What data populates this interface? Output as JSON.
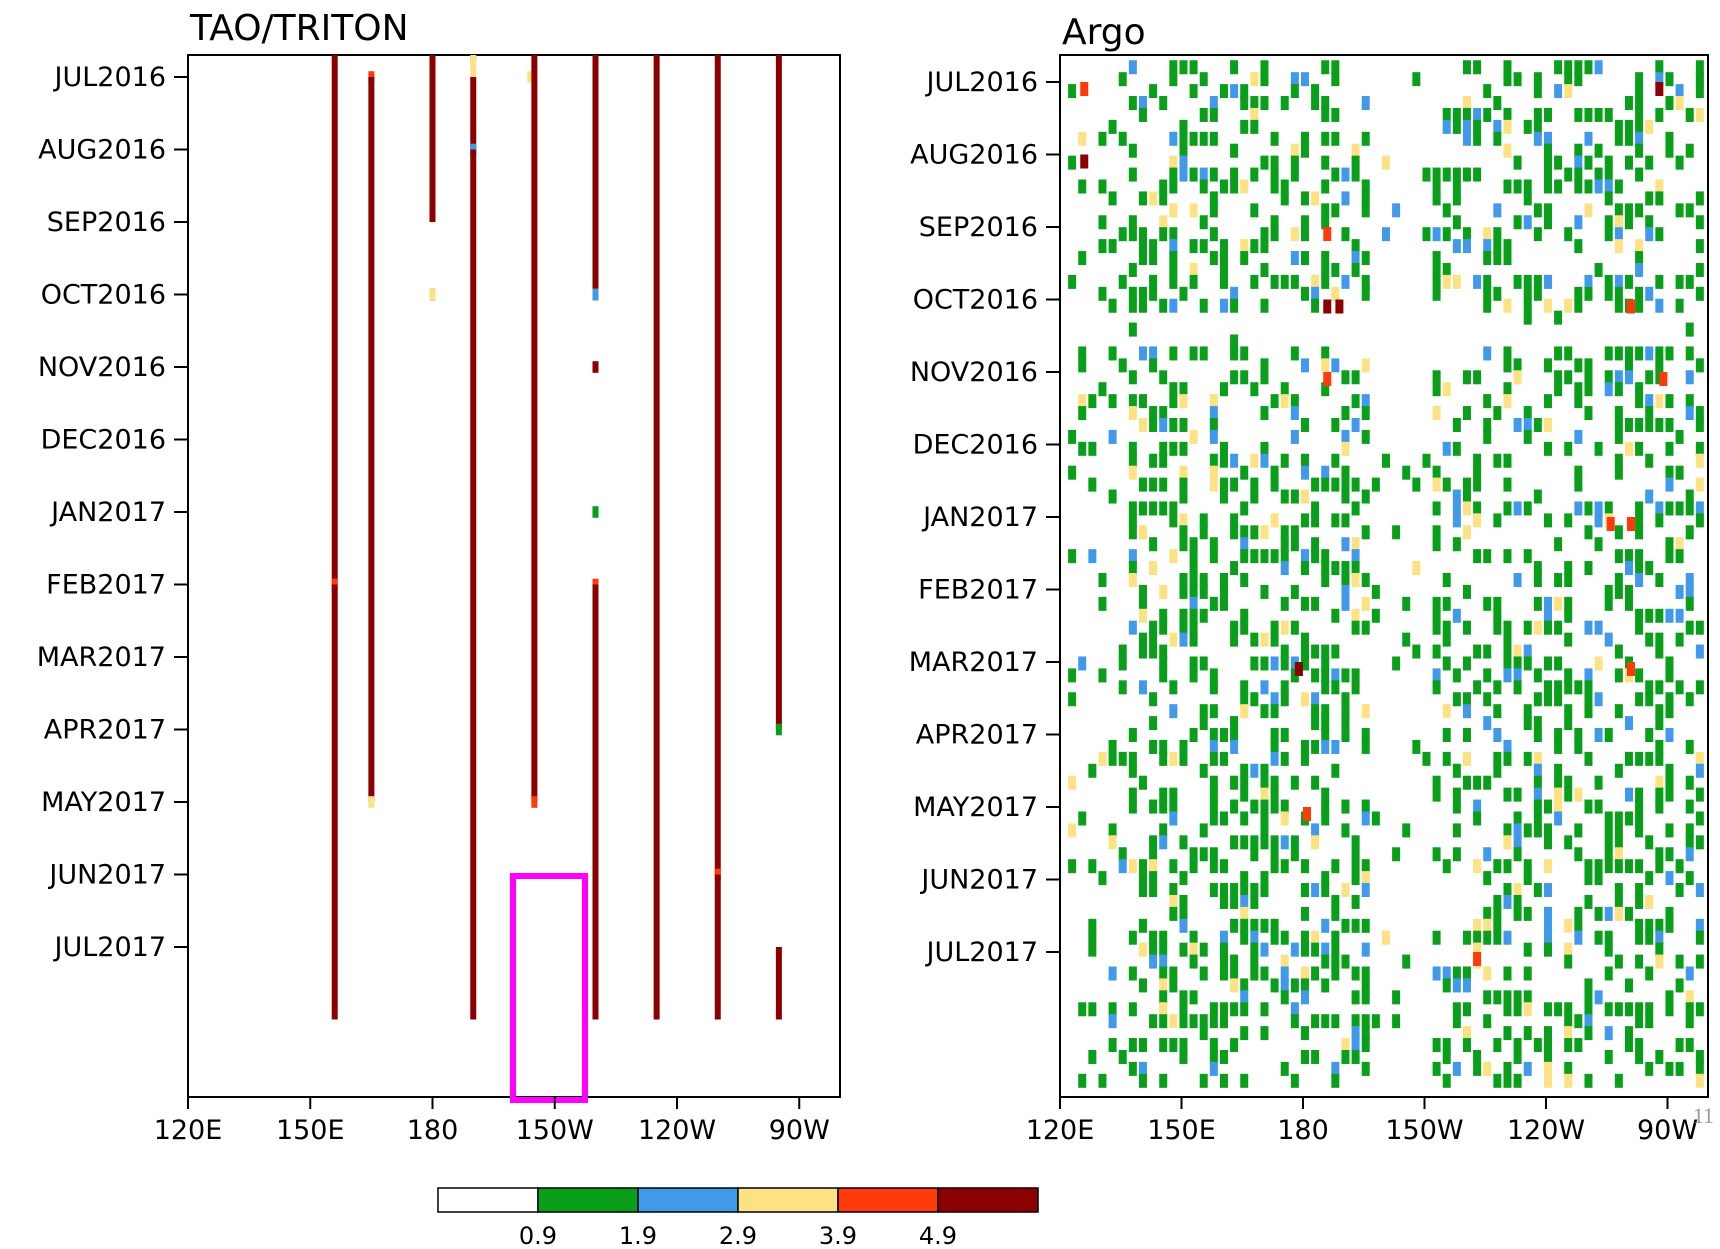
{
  "colorbar": {
    "colors": [
      "#ffffff",
      "#0a9f1a",
      "#4199ea",
      "#fde283",
      "#fe3a0b",
      "#8b0000"
    ],
    "labels": [
      "0.9",
      "1.9",
      "2.9",
      "3.9",
      "4.9"
    ]
  },
  "page_number": "11",
  "chart_data": [
    {
      "type": "heatmap",
      "title": "TAO/TRITON",
      "xlabel": "",
      "ylabel": "",
      "x_ticks": [
        "120E",
        "150E",
        "180",
        "150W",
        "120W",
        "90W"
      ],
      "y_ticks": [
        "JUL2016",
        "AUG2016",
        "SEP2016",
        "OCT2016",
        "NOV2016",
        "DEC2016",
        "JAN2017",
        "FEB2017",
        "MAR2017",
        "APR2017",
        "MAY2017",
        "JUN2017",
        "JUL2017"
      ],
      "xlim": [
        "120E",
        "80W"
      ],
      "ylim": [
        "JUN2016",
        "AUG2017"
      ],
      "highlight_box": {
        "lon_range": [
          "165W",
          "140W"
        ],
        "time_range": [
          "MAY2017",
          "AUG2017"
        ],
        "color": "#ff00ff"
      },
      "moorings": [
        {
          "lon": "156W",
          "segments": [
            {
              "from": "JUL2016",
              "to": "JUL2016",
              "class": 3
            }
          ]
        },
        {
          "lon": "156E",
          "segments": [
            {
              "from": "JUN2016",
              "to": "FEB2017",
              "class": 5
            },
            {
              "from": "FEB2017",
              "to": "FEB2017",
              "class": 4
            },
            {
              "from": "FEB2017",
              "to": "AUG2017",
              "class": 5
            }
          ]
        },
        {
          "lon": "165E",
          "segments": [
            {
              "from": "JUL2016",
              "to": "JUL2016",
              "class": 4
            },
            {
              "from": "JUL2016",
              "to": "MAY2017",
              "class": 5
            },
            {
              "from": "MAY2017",
              "to": "MAY2017",
              "class": 3
            }
          ]
        },
        {
          "lon": "180",
          "segments": [
            {
              "from": "JUN2016",
              "to": "SEP2016",
              "class": 5
            },
            {
              "from": "OCT2016",
              "to": "OCT2016",
              "class": 2
            },
            {
              "from": "OCT2016",
              "to": "OCT2016",
              "class": 4
            },
            {
              "from": "OCT2016",
              "to": "OCT2016",
              "class": 5
            },
            {
              "from": "OCT2016",
              "to": "OCT2016",
              "class": 3
            }
          ]
        },
        {
          "lon": "170W",
          "segments": [
            {
              "from": "JUN2016",
              "to": "JUN2016",
              "class": 4
            },
            {
              "from": "JUN2016",
              "to": "JUL2016",
              "class": 3
            },
            {
              "from": "JUL2016",
              "to": "AUG2016",
              "class": 5
            },
            {
              "from": "AUG2016",
              "to": "AUG2016",
              "class": 2
            },
            {
              "from": "AUG2016",
              "to": "AUG2017",
              "class": 5
            }
          ]
        },
        {
          "lon": "155W",
          "segments": [
            {
              "from": "JUN2016",
              "to": "MAY2017",
              "class": 5
            },
            {
              "from": "MAY2017",
              "to": "MAY2017",
              "class": 4
            }
          ]
        },
        {
          "lon": "140W",
          "segments": [
            {
              "from": "JUN2016",
              "to": "OCT2016",
              "class": 5
            },
            {
              "from": "OCT2016",
              "to": "OCT2016",
              "class": 3
            },
            {
              "from": "OCT2016",
              "to": "OCT2016",
              "class": 5
            },
            {
              "from": "OCT2016",
              "to": "OCT2016",
              "class": 2
            },
            {
              "from": "OCT2016",
              "to": "OCT2016",
              "class": 1
            },
            {
              "from": "OCT2016",
              "to": "OCT2016",
              "class": 2
            },
            {
              "from": "NOV2016",
              "to": "NOV2016",
              "class": 5
            },
            {
              "from": "JAN2017",
              "to": "JAN2017",
              "class": 1
            },
            {
              "from": "FEB2017",
              "to": "FEB2017",
              "class": 4
            },
            {
              "from": "FEB2017",
              "to": "AUG2017",
              "class": 5
            }
          ]
        },
        {
          "lon": "125W",
          "segments": [
            {
              "from": "JUN2016",
              "to": "AUG2017",
              "class": 5
            }
          ]
        },
        {
          "lon": "110W",
          "segments": [
            {
              "from": "JUN2016",
              "to": "JUN2017",
              "class": 5
            },
            {
              "from": "JUN2017",
              "to": "JUN2017",
              "class": 4
            },
            {
              "from": "JUN2017",
              "to": "AUG2017",
              "class": 5
            }
          ]
        },
        {
          "lon": "95W",
          "segments": [
            {
              "from": "JUN2016",
              "to": "APR2017",
              "class": 5
            },
            {
              "from": "APR2017",
              "to": "APR2017",
              "class": 1
            },
            {
              "from": "JUL2017",
              "to": "AUG2017",
              "class": 5
            }
          ]
        }
      ]
    },
    {
      "type": "heatmap",
      "title": "Argo",
      "xlabel": "",
      "ylabel": "",
      "x_ticks": [
        "120E",
        "150E",
        "180",
        "150W",
        "120W",
        "90W"
      ],
      "y_ticks": [
        "JUL2016",
        "AUG2016",
        "SEP2016",
        "OCT2016",
        "NOV2016",
        "DEC2016",
        "JAN2017",
        "FEB2017",
        "MAR2017",
        "APR2017",
        "MAY2017",
        "JUN2017",
        "JUL2017"
      ],
      "xlim": [
        "120E",
        "80W"
      ],
      "ylim": [
        "JUN2016",
        "AUG2017"
      ],
      "grid": {
        "lon_step_deg": 2.5,
        "time_step_days": 5
      },
      "field_description": "dense scatter of profile boxes; dominant class 1 (green) with sparse classes 2-5 and a data gap around 160W",
      "hot_spots": [
        {
          "lon": "125E",
          "time": "JUL2016",
          "class": 4
        },
        {
          "lon": "125E",
          "time": "AUG2016",
          "class": 5
        },
        {
          "lon": "175W",
          "time": "SEP2016",
          "class": 4
        },
        {
          "lon": "175W",
          "time": "OCT2016",
          "class": 5
        },
        {
          "lon": "172W",
          "time": "OCT2016",
          "class": 5
        },
        {
          "lon": "175W",
          "time": "NOV2016",
          "class": 4
        },
        {
          "lon": "100W",
          "time": "OCT2016",
          "class": 4
        },
        {
          "lon": "92W",
          "time": "NOV2016",
          "class": 4
        },
        {
          "lon": "100W",
          "time": "JAN2017",
          "class": 4
        },
        {
          "lon": "105W",
          "time": "JAN2017",
          "class": 4
        },
        {
          "lon": "178E",
          "time": "MAR2017",
          "class": 5
        },
        {
          "lon": "100W",
          "time": "MAR2017",
          "class": 4
        },
        {
          "lon": "180",
          "time": "MAY2017",
          "class": 4
        },
        {
          "lon": "138W",
          "time": "JUL2017",
          "class": 4
        },
        {
          "lon": "93W",
          "time": "JUL2016",
          "class": 5
        }
      ]
    }
  ]
}
